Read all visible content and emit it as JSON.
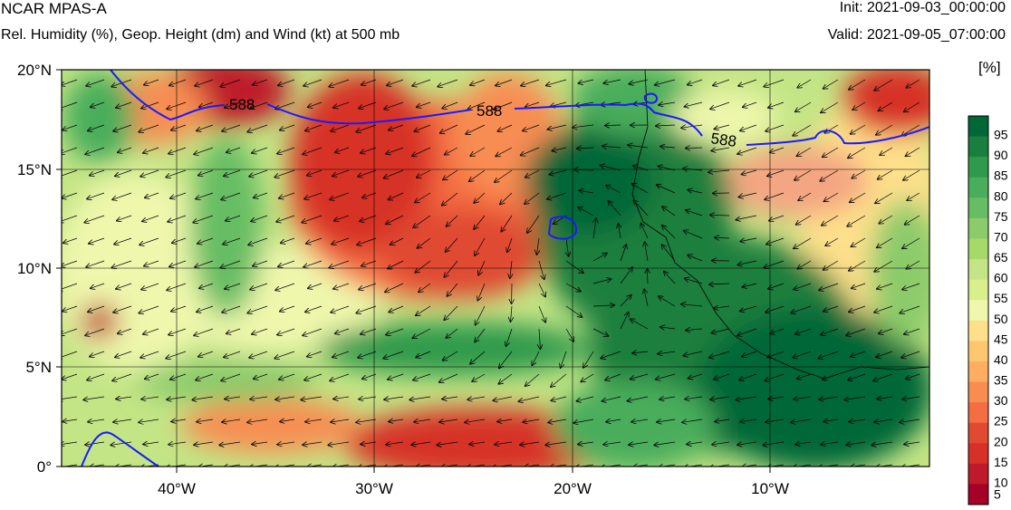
{
  "header": {
    "model": "NCAR MPAS-A",
    "field": "Rel. Humidity (%), Geop. Height (dm) and Wind (kt) at 500 mb",
    "init": "Init: 2021-09-03_00:00:00",
    "valid": "Valid: 2021-09-05_07:00:00"
  },
  "map": {
    "lat_labels": [
      "20°N",
      "15°N",
      "10°N",
      "5°N",
      "0°"
    ],
    "lon_labels": [
      "40°W",
      "30°W",
      "20°W",
      "10°W"
    ],
    "contour_labels": [
      "588",
      "588",
      "588"
    ],
    "colors": {
      "contour": "#1a1aff",
      "coastline": "#000000",
      "grid": "#000000"
    }
  },
  "colorbar": {
    "unit": "[%]",
    "levels": [
      "95",
      "90",
      "85",
      "80",
      "75",
      "70",
      "65",
      "60",
      "55",
      "50",
      "45",
      "40",
      "35",
      "30",
      "25",
      "20",
      "15",
      "10",
      "5"
    ],
    "colors": [
      "#006837",
      "#1a7f3e",
      "#2f9a4c",
      "#4aad5b",
      "#66bd63",
      "#8ccb6b",
      "#a6d96a",
      "#c3e585",
      "#d9ef8b",
      "#eef7ac",
      "#fee08b",
      "#fdc770",
      "#fdae61",
      "#f88d52",
      "#f46d43",
      "#e04a31",
      "#d73027",
      "#be1a2b",
      "#a50026"
    ]
  }
}
